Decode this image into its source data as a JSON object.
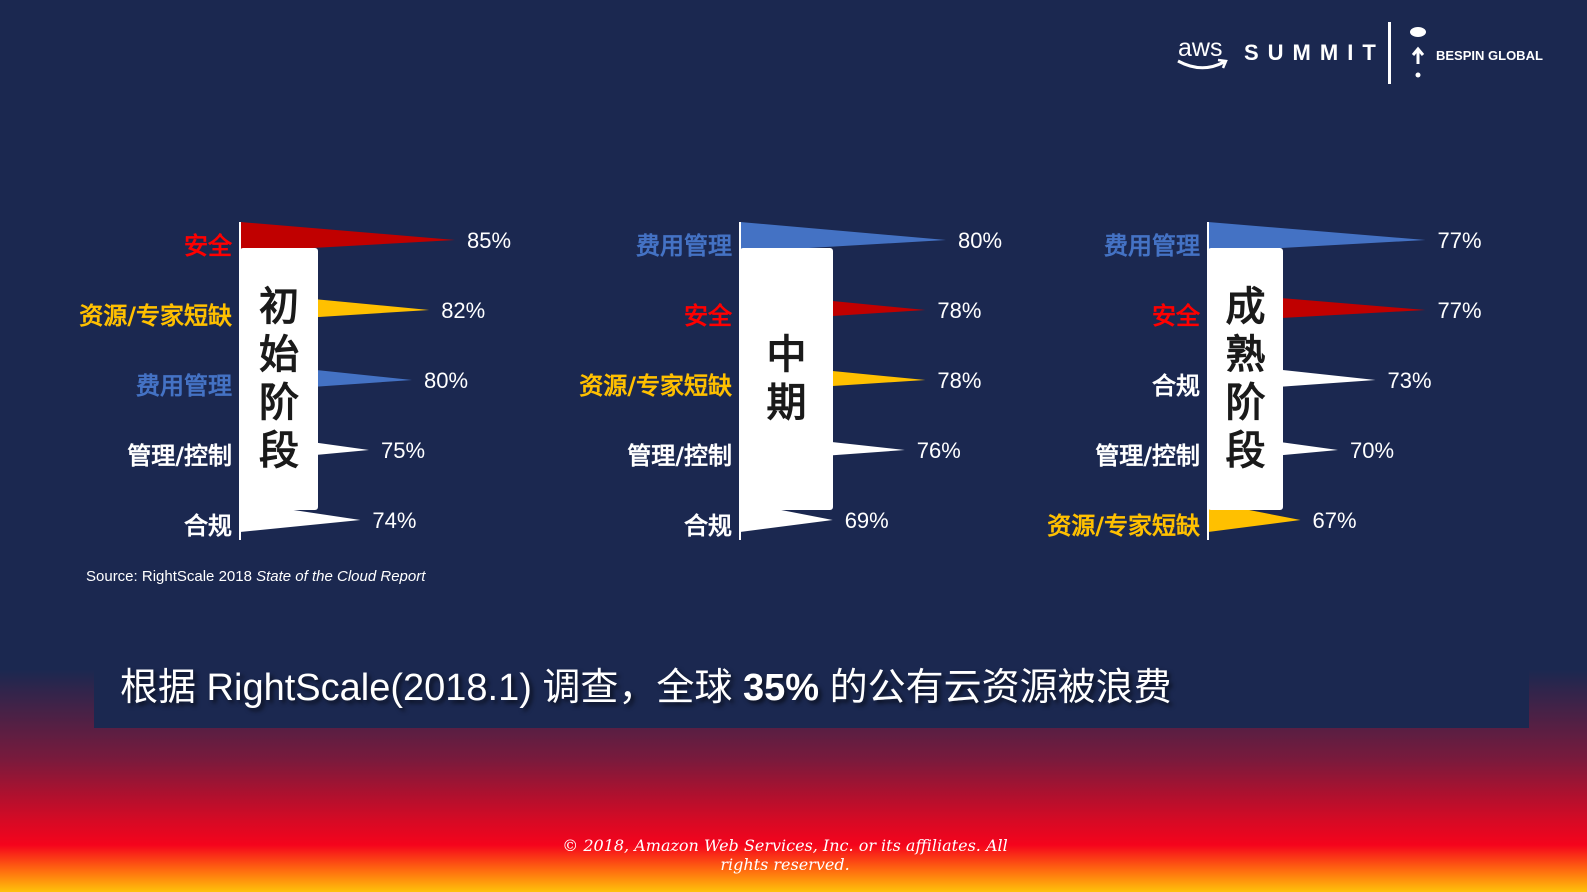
{
  "header": {
    "aws_logo": "aws",
    "summit_label": "SUMMIT",
    "partner_logo": "BESPIN GLOBAL"
  },
  "colors": {
    "background": "#1b2850",
    "security": "#c00000",
    "resources": "#ffc000",
    "cost": "#4472c4",
    "neutral": "#ffffff"
  },
  "chart_data": {
    "type": "bar",
    "orientation": "horizontal",
    "panels": [
      {
        "stage": "初始阶段",
        "categories": [
          "安全",
          "资源/专家短缺",
          "费用管理",
          "管理/控制",
          "合规"
        ],
        "values": [
          85,
          82,
          80,
          75,
          74
        ],
        "labels": [
          "85%",
          "82%",
          "80%",
          "75%",
          "74%"
        ],
        "category_colors": [
          "#ff0000",
          "#ffc000",
          "#4472c4",
          "#ffffff",
          "#ffffff"
        ],
        "bar_colors": [
          "#c00000",
          "#ffc000",
          "#4472c4",
          "#ffffff",
          "#ffffff"
        ]
      },
      {
        "stage": "中期",
        "categories": [
          "费用管理",
          "安全",
          "资源/专家短缺",
          "管理/控制",
          "合规"
        ],
        "values": [
          80,
          78,
          78,
          76,
          69
        ],
        "labels": [
          "80%",
          "78%",
          "78%",
          "76%",
          "69%"
        ],
        "category_colors": [
          "#4472c4",
          "#ff0000",
          "#ffc000",
          "#ffffff",
          "#ffffff"
        ],
        "bar_colors": [
          "#4472c4",
          "#c00000",
          "#ffc000",
          "#ffffff",
          "#ffffff"
        ]
      },
      {
        "stage": "成熟阶段",
        "categories": [
          "费用管理",
          "安全",
          "合规",
          "管理/控制",
          "资源/专家短缺"
        ],
        "values": [
          77,
          77,
          73,
          70,
          67
        ],
        "labels": [
          "77%",
          "77%",
          "73%",
          "70%",
          "67%"
        ],
        "category_colors": [
          "#4472c4",
          "#ff0000",
          "#ffffff",
          "#ffffff",
          "#ffc000"
        ],
        "bar_colors": [
          "#4472c4",
          "#c00000",
          "#ffffff",
          "#ffffff",
          "#ffc000"
        ]
      }
    ],
    "unit": "%"
  },
  "source": {
    "prefix": "Source: RightScale 2018 ",
    "title": "State of the Cloud Report"
  },
  "banner": {
    "before": "根据 RightScale(2018.1) 调查，全球 ",
    "highlight": "35%",
    "after": " 的公有云资源被浪费"
  },
  "footer": {
    "copyright": "© 2018, Amazon Web Services, Inc. or its affiliates. All rights reserved."
  }
}
